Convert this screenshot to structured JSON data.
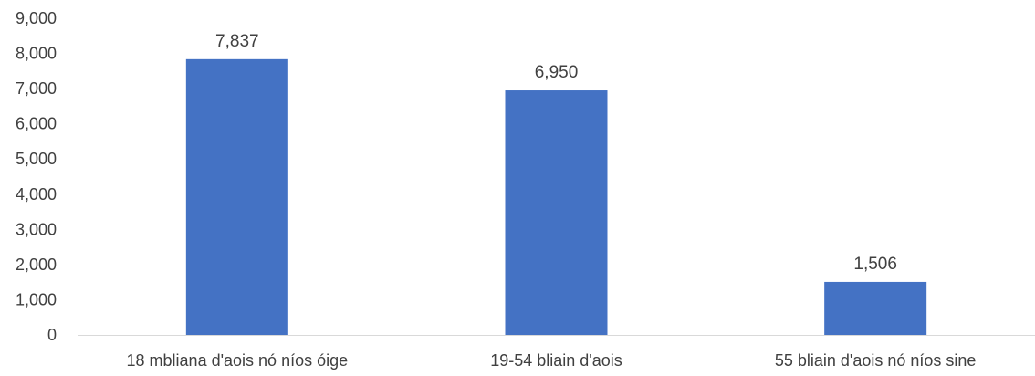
{
  "chart_data": {
    "type": "bar",
    "title": "",
    "xlabel": "",
    "ylabel": "",
    "categories": [
      "18 mbliana d'aois nó níos óige",
      "19-54 bliain d'aois",
      "55 bliain d'aois nó níos sine"
    ],
    "values": [
      7837,
      6950,
      1506
    ],
    "data_labels": [
      "7,837",
      "6,950",
      "1,506"
    ],
    "ylim": [
      0,
      9000
    ],
    "y_ticks": [
      0,
      1000,
      2000,
      3000,
      4000,
      5000,
      6000,
      7000,
      8000,
      9000
    ],
    "y_tick_labels": [
      "0",
      "1,000",
      "2,000",
      "3,000",
      "4,000",
      "5,000",
      "6,000",
      "7,000",
      "8,000",
      "9,000"
    ],
    "grid": false,
    "legend": "none",
    "bar_color": "#4472C4",
    "axis_color": "#D9D9D9",
    "text_color": "#404040"
  }
}
